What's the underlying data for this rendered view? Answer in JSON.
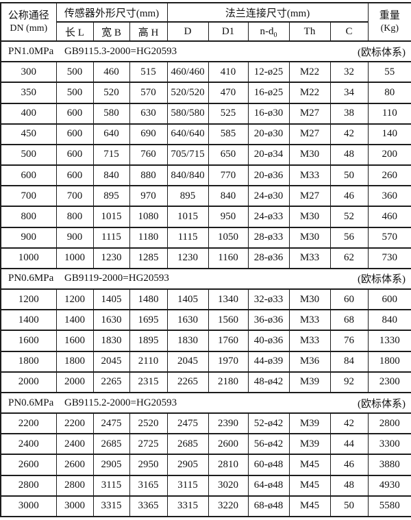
{
  "table": {
    "header": {
      "dn_title": "公称通径",
      "dn_sub": "DN (mm)",
      "sensor_group": "传感器外形尺寸(mm)",
      "flange_group": "法兰连接尺寸(mm)",
      "weight_title": "重量",
      "weight_sub": "(Kg)",
      "sub_cols": [
        "长 L",
        "宽 B",
        "高 H",
        "D",
        "D1",
        "n-d",
        "Th",
        "C"
      ],
      "nd_subscript": "0"
    },
    "sections": [
      {
        "pressure": "PN1.0MPa",
        "standard": "GB9115.3-2000=HG20593",
        "note": "(欧标体系)",
        "rows": [
          [
            "300",
            "500",
            "460",
            "515",
            "460/460",
            "410",
            "12-ø25",
            "M22",
            "32",
            "55"
          ],
          [
            "350",
            "500",
            "520",
            "570",
            "520/520",
            "470",
            "16-ø25",
            "M22",
            "34",
            "80"
          ],
          [
            "400",
            "600",
            "580",
            "630",
            "580/580",
            "525",
            "16-ø30",
            "M27",
            "38",
            "110"
          ],
          [
            "450",
            "600",
            "640",
            "690",
            "640/640",
            "585",
            "20-ø30",
            "M27",
            "42",
            "140"
          ],
          [
            "500",
            "600",
            "715",
            "760",
            "705/715",
            "650",
            "20-ø34",
            "M30",
            "48",
            "200"
          ],
          [
            "600",
            "600",
            "840",
            "880",
            "840/840",
            "770",
            "20-ø36",
            "M33",
            "50",
            "260"
          ],
          [
            "700",
            "700",
            "895",
            "970",
            "895",
            "840",
            "24-ø30",
            "M27",
            "46",
            "360"
          ],
          [
            "800",
            "800",
            "1015",
            "1080",
            "1015",
            "950",
            "24-ø33",
            "M30",
            "52",
            "460"
          ],
          [
            "900",
            "900",
            "1115",
            "1180",
            "1115",
            "1050",
            "28-ø33",
            "M30",
            "56",
            "570"
          ],
          [
            "1000",
            "1000",
            "1230",
            "1285",
            "1230",
            "1160",
            "28-ø36",
            "M33",
            "62",
            "730"
          ]
        ]
      },
      {
        "pressure": "PN0.6MPa",
        "standard": "GB9119-2000=HG20593",
        "note": "(欧标体系)",
        "rows": [
          [
            "1200",
            "1200",
            "1405",
            "1480",
            "1405",
            "1340",
            "32-ø33",
            "M30",
            "60",
            "600"
          ],
          [
            "1400",
            "1400",
            "1630",
            "1695",
            "1630",
            "1560",
            "36-ø36",
            "M33",
            "68",
            "840"
          ],
          [
            "1600",
            "1600",
            "1830",
            "1895",
            "1830",
            "1760",
            "40-ø36",
            "M33",
            "76",
            "1330"
          ],
          [
            "1800",
            "1800",
            "2045",
            "2110",
            "2045",
            "1970",
            "44-ø39",
            "M36",
            "84",
            "1800"
          ],
          [
            "2000",
            "2000",
            "2265",
            "2315",
            "2265",
            "2180",
            "48-ø42",
            "M39",
            "92",
            "2300"
          ]
        ]
      },
      {
        "pressure": "PN0.6MPa",
        "standard": "GB9115.2-2000=HG20593",
        "note": "(欧标体系)",
        "rows": [
          [
            "2200",
            "2200",
            "2475",
            "2520",
            "2475",
            "2390",
            "52-ø42",
            "M39",
            "42",
            "2800"
          ],
          [
            "2400",
            "2400",
            "2685",
            "2725",
            "2685",
            "2600",
            "56-ø42",
            "M39",
            "44",
            "3300"
          ],
          [
            "2600",
            "2600",
            "2905",
            "2950",
            "2905",
            "2810",
            "60-ø48",
            "M45",
            "46",
            "3880"
          ],
          [
            "2800",
            "2800",
            "3115",
            "3165",
            "3115",
            "3020",
            "64-ø48",
            "M45",
            "48",
            "4930"
          ],
          [
            "3000",
            "3000",
            "3315",
            "3365",
            "3315",
            "3220",
            "68-ø48",
            "M45",
            "50",
            "5580"
          ]
        ]
      }
    ]
  }
}
